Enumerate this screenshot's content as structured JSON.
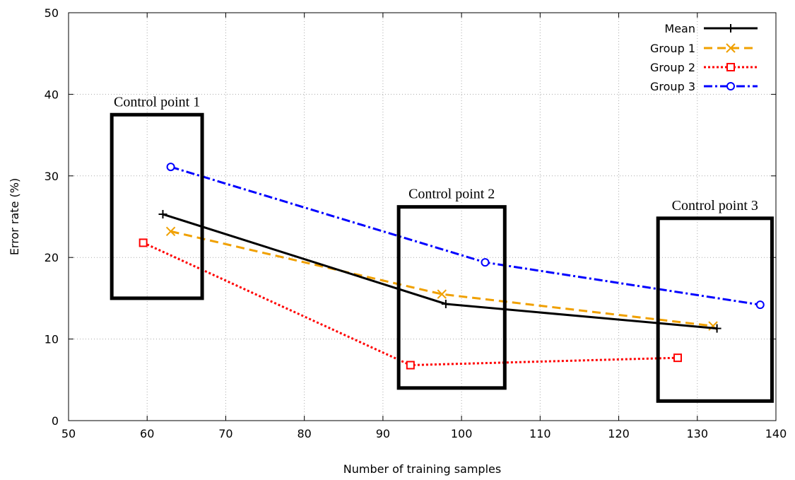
{
  "chart_data": {
    "type": "line",
    "title": "",
    "xlabel": "Number of training samples",
    "ylabel": "Error rate (%)",
    "xlim": [
      50,
      140
    ],
    "ylim": [
      0,
      50
    ],
    "xticks": [
      "50",
      "60",
      "70",
      "80",
      "90",
      "100",
      "110",
      "120",
      "130",
      "140"
    ],
    "yticks": [
      "0",
      "10",
      "20",
      "30",
      "40",
      "50"
    ],
    "grid": true,
    "legend_position": "top-right",
    "series": [
      {
        "name": "Mean",
        "color": "#000000",
        "style": "solid",
        "marker": "plus",
        "x": [
          62,
          98,
          132.5
        ],
        "y": [
          25.3,
          14.3,
          11.3
        ]
      },
      {
        "name": "Group 1",
        "color": "#f0a000",
        "style": "dashed",
        "marker": "cross",
        "x": [
          63,
          97.5,
          132
        ],
        "y": [
          23.2,
          15.5,
          11.6
        ]
      },
      {
        "name": "Group 2",
        "color": "#ff0000",
        "style": "dotted",
        "marker": "square",
        "x": [
          59.5,
          93.5,
          127.5
        ],
        "y": [
          21.8,
          6.8,
          7.7
        ]
      },
      {
        "name": "Group 3",
        "color": "#0000ff",
        "style": "dashdot",
        "marker": "circle",
        "x": [
          63,
          103,
          138
        ],
        "y": [
          31.1,
          19.4,
          14.2
        ]
      }
    ],
    "annotations": [
      {
        "text": "Control point 1",
        "x": [
          55.5,
          67
        ],
        "y": [
          15,
          37.5
        ]
      },
      {
        "text": "Control point 2",
        "x": [
          92,
          105.5
        ],
        "y": [
          4,
          26.2
        ]
      },
      {
        "text": "Control point 3",
        "x": [
          125,
          139.5
        ],
        "y": [
          2.4,
          24.8
        ]
      }
    ]
  }
}
